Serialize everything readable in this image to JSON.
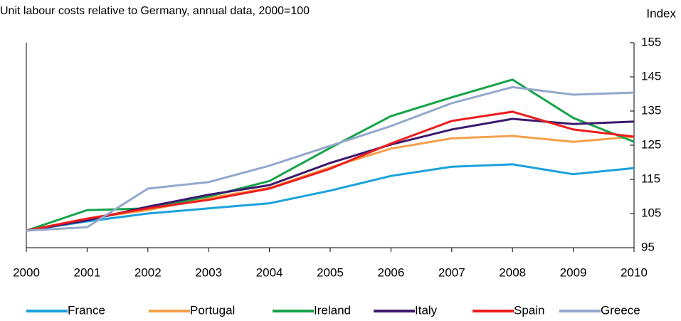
{
  "chart_data": {
    "type": "line",
    "title": "Unit labour costs relative to Germany, annual data, 2000=100",
    "y_axis_label": "Index",
    "x": [
      "2000",
      "2001",
      "2002",
      "2003",
      "2004",
      "2005",
      "2006",
      "2007",
      "2008",
      "2009",
      "2010"
    ],
    "ylim": [
      95,
      155
    ],
    "yticks": [
      95,
      105,
      115,
      125,
      135,
      145,
      155
    ],
    "legend": "bottom",
    "series": [
      {
        "name": "France",
        "color": "#1ba1dc",
        "values": [
          100,
          102.7,
          105,
          106.5,
          108,
          111.7,
          116,
          118.7,
          119.4,
          116.5,
          118.3
        ]
      },
      {
        "name": "Portugal",
        "color": "#f5a04a",
        "values": [
          100,
          103.5,
          106,
          109.5,
          112.5,
          118.5,
          124,
          127,
          127.7,
          126,
          127.5
        ]
      },
      {
        "name": "Ireland",
        "color": "#16a34a",
        "values": [
          100,
          106,
          106.5,
          110,
          114.5,
          124.2,
          133.5,
          139,
          144.2,
          133,
          126
        ]
      },
      {
        "name": "Italy",
        "color": "#3b1a6e",
        "values": [
          100,
          103,
          107,
          110.5,
          113.3,
          119.8,
          125.2,
          129.6,
          132.7,
          131.2,
          131.9
        ]
      },
      {
        "name": "Spain",
        "color": "#ee1c1c",
        "values": [
          100,
          103.5,
          106.5,
          109,
          112.3,
          118.1,
          125.5,
          132.1,
          134.8,
          129.6,
          127.5
        ]
      },
      {
        "name": "Greece",
        "color": "#93a8cc",
        "values": [
          100,
          101,
          112.3,
          114.2,
          119,
          124.8,
          130.6,
          137.3,
          142,
          139.8,
          140.4
        ]
      }
    ]
  }
}
